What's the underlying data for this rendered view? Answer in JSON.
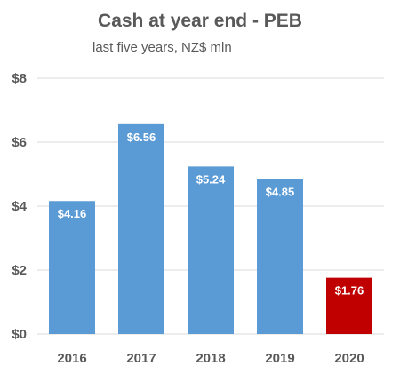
{
  "chart_data": {
    "type": "bar",
    "title": "Cash at year end - PEB",
    "subtitle": "last five years, NZ$ mln",
    "categories": [
      "2016",
      "2017",
      "2018",
      "2019",
      "2020"
    ],
    "values": [
      4.16,
      6.56,
      5.24,
      4.85,
      1.76
    ],
    "data_labels": [
      "$4.16",
      "$6.56",
      "$5.24",
      "$4.85",
      "$1.76"
    ],
    "bar_colors": [
      "#5b9bd5",
      "#5b9bd5",
      "#5b9bd5",
      "#5b9bd5",
      "#c00000"
    ],
    "yticks": [
      0,
      2,
      4,
      6,
      8
    ],
    "ytick_labels": [
      "$0",
      "$2",
      "$4",
      "$6",
      "$8"
    ],
    "ylim": [
      0,
      8
    ],
    "xlabel": "",
    "ylabel": "",
    "grid": true,
    "legend": "none"
  }
}
